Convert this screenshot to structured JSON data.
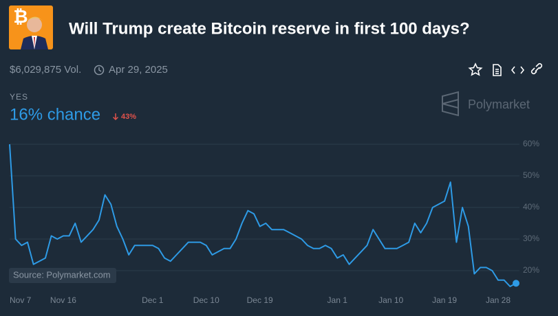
{
  "header": {
    "title": "Will Trump create Bitcoin reserve in first 100 days?",
    "volume": "$6,029,875 Vol.",
    "date": "Apr 29, 2025"
  },
  "outcome": {
    "name": "YES",
    "chance": "16% chance",
    "change": "43%"
  },
  "brand": "Polymarket",
  "source": "Source: Polymarket.com",
  "chart_data": {
    "type": "line",
    "color": "#2e9be6",
    "grid": true,
    "x": [
      "Nov 7",
      "Nov 8",
      "Nov 9",
      "Nov 10",
      "Nov 11",
      "Nov 12",
      "Nov 13",
      "Nov 14",
      "Nov 15",
      "Nov 16",
      "Nov 17",
      "Nov 18",
      "Nov 19",
      "Nov 20",
      "Nov 21",
      "Nov 22",
      "Nov 23",
      "Nov 24",
      "Nov 25",
      "Nov 26",
      "Nov 27",
      "Nov 28",
      "Nov 29",
      "Nov 30",
      "Dec 1",
      "Dec 2",
      "Dec 3",
      "Dec 4",
      "Dec 5",
      "Dec 6",
      "Dec 7",
      "Dec 8",
      "Dec 9",
      "Dec 10",
      "Dec 11",
      "Dec 12",
      "Dec 13",
      "Dec 14",
      "Dec 15",
      "Dec 16",
      "Dec 17",
      "Dec 18",
      "Dec 19",
      "Dec 20",
      "Dec 21",
      "Dec 22",
      "Dec 23",
      "Dec 24",
      "Dec 25",
      "Dec 26",
      "Dec 27",
      "Dec 28",
      "Dec 29",
      "Dec 30",
      "Dec 31",
      "Jan 1",
      "Jan 2",
      "Jan 3",
      "Jan 4",
      "Jan 5",
      "Jan 6",
      "Jan 7",
      "Jan 8",
      "Jan 9",
      "Jan 10",
      "Jan 11",
      "Jan 12",
      "Jan 13",
      "Jan 14",
      "Jan 15",
      "Jan 16",
      "Jan 17",
      "Jan 18",
      "Jan 19",
      "Jan 20",
      "Jan 21",
      "Jan 22",
      "Jan 23",
      "Jan 24",
      "Jan 25",
      "Jan 26",
      "Jan 27",
      "Jan 28",
      "Jan 29",
      "Jan 30",
      "Jan 31"
    ],
    "values": [
      60,
      30,
      28,
      29,
      22,
      23,
      24,
      31,
      30,
      31,
      31,
      35,
      29,
      31,
      33,
      36,
      44,
      41,
      34,
      30,
      25,
      28,
      28,
      28,
      28,
      27,
      24,
      23,
      25,
      27,
      29,
      29,
      29,
      28,
      25,
      26,
      27,
      27,
      30,
      35,
      39,
      38,
      34,
      35,
      33,
      33,
      33,
      32,
      31,
      30,
      28,
      27,
      27,
      28,
      27,
      24,
      25,
      22,
      24,
      26,
      28,
      33,
      30,
      27,
      27,
      27,
      28,
      29,
      35,
      32,
      35,
      40,
      41,
      42,
      48,
      29,
      40,
      34,
      19,
      21,
      21,
      20,
      17,
      17,
      15,
      16
    ],
    "xticks": [
      "Nov 7",
      "Nov 16",
      "Dec 1",
      "Dec 10",
      "Dec 19",
      "Jan 1",
      "Jan 10",
      "Jan 19",
      "Jan 28"
    ],
    "ylim": [
      10,
      62
    ],
    "yticks": [
      {
        "value": 20,
        "label": "20%"
      },
      {
        "value": 30,
        "label": "30%"
      },
      {
        "value": 40,
        "label": "40%"
      },
      {
        "value": 50,
        "label": "50%"
      },
      {
        "value": 60,
        "label": "60%"
      }
    ]
  }
}
